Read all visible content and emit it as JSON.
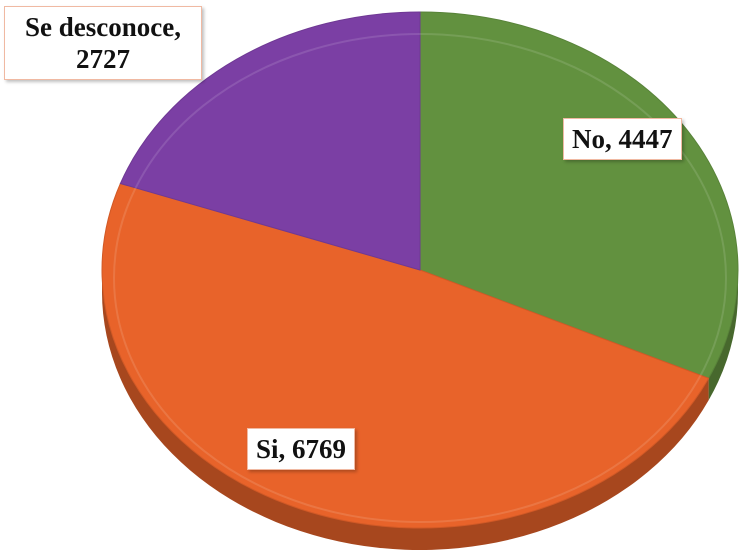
{
  "chart_data": {
    "type": "pie",
    "categories": [
      "No",
      "Si",
      "Se desconoce"
    ],
    "values": [
      4447,
      6769,
      2727
    ],
    "value_labels": [
      "No, 4447",
      "Si, 6769",
      "Se desconoce, 2727"
    ],
    "colors": [
      "#62913f",
      "#e8632a",
      "#7b3fa4"
    ]
  }
}
